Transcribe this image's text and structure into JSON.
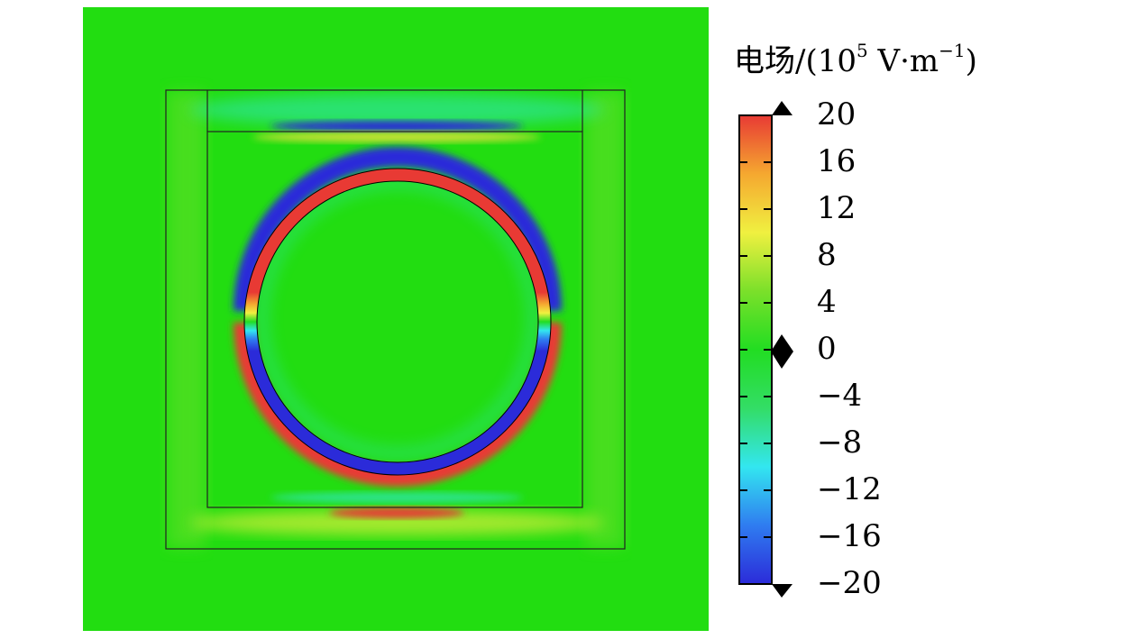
{
  "colorbar": {
    "title_prefix": "电场/(10",
    "title_exp": "5",
    "title_unit": " V·m",
    "title_unit_exp": "−1",
    "title_suffix": ")",
    "ticks": [
      "20",
      "16",
      "12",
      "8",
      "4",
      "0",
      "−4",
      "−8",
      "−12",
      "−16",
      "−20"
    ],
    "range": [
      -20,
      20
    ],
    "colormap": [
      "#2b2bd9",
      "#2f7cf0",
      "#33e6f0",
      "#33dd66",
      "#22dd22",
      "#7be02a",
      "#f0f040",
      "#f5a830",
      "#e83a34"
    ]
  },
  "field": {
    "background_color": "#22dd11",
    "ring_positive_color": "#e83a34",
    "ring_negative_color": "#2b2bd9"
  }
}
